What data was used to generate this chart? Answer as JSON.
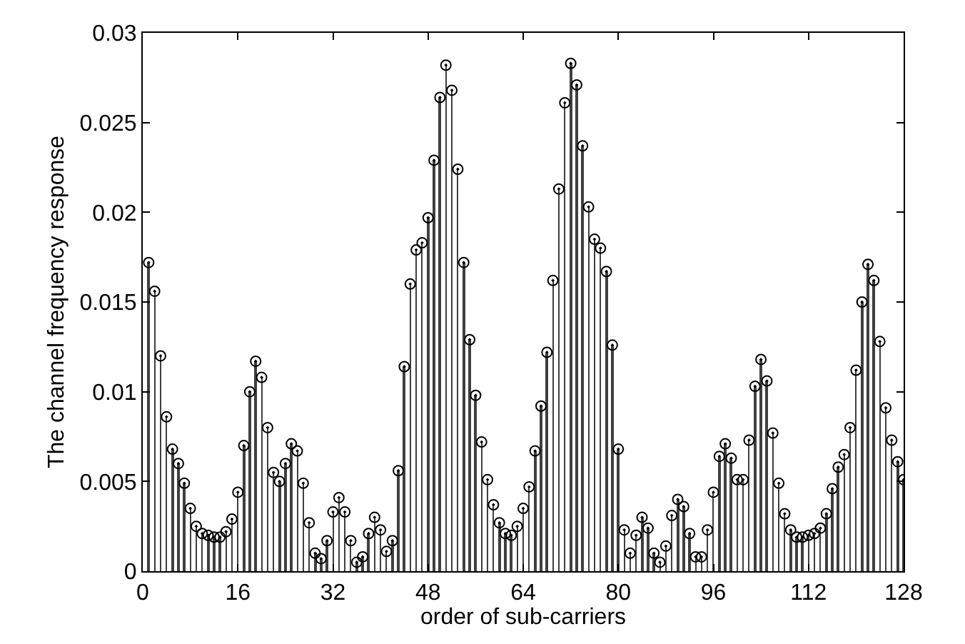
{
  "chart_data": {
    "type": "lollipop",
    "xlabel": "order of sub-carriers",
    "ylabel": "The channel frequency response",
    "x": [
      1,
      2,
      3,
      4,
      5,
      6,
      7,
      8,
      9,
      10,
      11,
      12,
      13,
      14,
      15,
      16,
      17,
      18,
      19,
      20,
      21,
      22,
      23,
      24,
      25,
      26,
      27,
      28,
      29,
      30,
      31,
      32,
      33,
      34,
      35,
      36,
      37,
      38,
      39,
      40,
      41,
      42,
      43,
      44,
      45,
      46,
      47,
      48,
      49,
      50,
      51,
      52,
      53,
      54,
      55,
      56,
      57,
      58,
      59,
      60,
      61,
      62,
      63,
      64,
      65,
      66,
      67,
      68,
      69,
      70,
      71,
      72,
      73,
      74,
      75,
      76,
      77,
      78,
      79,
      80,
      81,
      82,
      83,
      84,
      85,
      86,
      87,
      88,
      89,
      90,
      91,
      92,
      93,
      94,
      95,
      96,
      97,
      98,
      99,
      100,
      101,
      102,
      103,
      104,
      105,
      106,
      107,
      108,
      109,
      110,
      111,
      112,
      113,
      114,
      115,
      116,
      117,
      118,
      119,
      120,
      121,
      122,
      123,
      124,
      125,
      126,
      127,
      128
    ],
    "values": [
      0.0172,
      0.0156,
      0.012,
      0.0086,
      0.0068,
      0.006,
      0.0049,
      0.0035,
      0.0025,
      0.0021,
      0.002,
      0.0019,
      0.0019,
      0.0022,
      0.0029,
      0.0044,
      0.007,
      0.01,
      0.0117,
      0.0108,
      0.008,
      0.0055,
      0.005,
      0.006,
      0.0071,
      0.0067,
      0.0049,
      0.0027,
      0.001,
      0.0007,
      0.0017,
      0.0033,
      0.0041,
      0.0033,
      0.0017,
      0.0005,
      0.0008,
      0.0021,
      0.003,
      0.0023,
      0.0011,
      0.0017,
      0.0056,
      0.0114,
      0.016,
      0.0179,
      0.0183,
      0.0197,
      0.0229,
      0.0264,
      0.0282,
      0.0268,
      0.0224,
      0.0172,
      0.0129,
      0.0098,
      0.0072,
      0.0051,
      0.0037,
      0.0027,
      0.0021,
      0.002,
      0.0025,
      0.0035,
      0.0047,
      0.0067,
      0.0092,
      0.0122,
      0.0162,
      0.0213,
      0.0261,
      0.0283,
      0.0271,
      0.0237,
      0.0203,
      0.0185,
      0.018,
      0.0167,
      0.0126,
      0.0068,
      0.0023,
      0.001,
      0.002,
      0.003,
      0.0024,
      0.001,
      0.0005,
      0.0014,
      0.0031,
      0.004,
      0.0036,
      0.0021,
      0.0008,
      0.0008,
      0.0023,
      0.0044,
      0.0064,
      0.0071,
      0.0063,
      0.0051,
      0.0051,
      0.0073,
      0.0103,
      0.0118,
      0.0106,
      0.0077,
      0.0049,
      0.0032,
      0.0023,
      0.0019,
      0.0019,
      0.002,
      0.0021,
      0.0024,
      0.0032,
      0.0046,
      0.0058,
      0.0065,
      0.008,
      0.0112,
      0.015,
      0.0171,
      0.0162,
      0.0128,
      0.0091,
      0.0073,
      0.0061,
      0.0051
    ],
    "color": "#000000",
    "marker": "circle",
    "xlim": [
      0,
      128
    ],
    "xticks": [
      0,
      16,
      32,
      48,
      64,
      80,
      96,
      112,
      128
    ],
    "ylim": [
      0,
      0.03
    ],
    "yticks": [
      0,
      0.005,
      0.01,
      0.015,
      0.02,
      0.025,
      0.03
    ],
    "grid": false
  }
}
